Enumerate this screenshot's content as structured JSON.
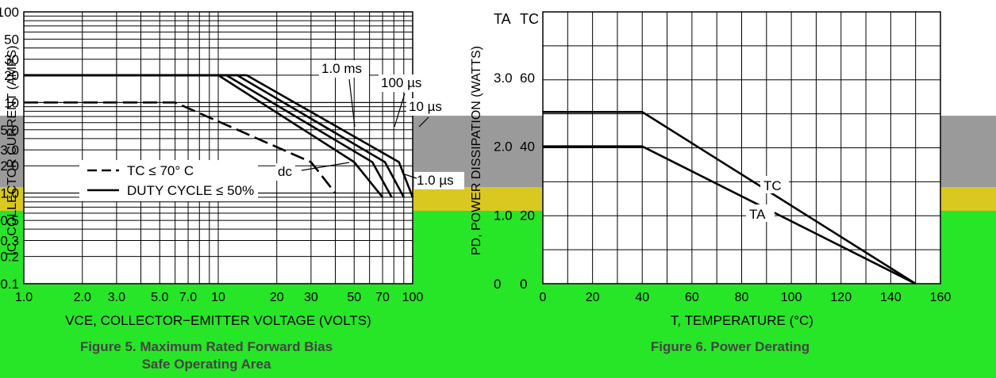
{
  "chart_data": [
    {
      "type": "line",
      "title": "Figure 5. Maximum Rated Forward Bias Safe Operating Area",
      "xlabel": "V_CE, COLLECTOR−EMITTER VOLTAGE (VOLTS)",
      "ylabel": "I_C, COLLECTOR CURRENT (AMPS)",
      "x_scale": "log",
      "y_scale": "log",
      "xlim": [
        1.0,
        100
      ],
      "ylim": [
        0.1,
        100
      ],
      "x_ticks": [
        "1.0",
        "2.0",
        "3.0",
        "5.0",
        "7.0",
        "10",
        "20",
        "30",
        "50",
        "70",
        "100"
      ],
      "y_ticks": [
        "0.1",
        "0.2",
        "0.3",
        "0.5",
        "1.0",
        "2.0",
        "3.0",
        "5.0",
        "10",
        "20",
        "30",
        "50",
        "100"
      ],
      "grid": true,
      "legend_position": "lower-left",
      "legend": [
        "T_C ≤ 70° C",
        "DUTY CYCLE ≤ 50%"
      ],
      "series": [
        {
          "name": "1.0 ms",
          "x": [
            1.0,
            10,
            50,
            70
          ],
          "y": [
            20,
            20,
            2.2,
            0.9
          ]
        },
        {
          "name": "100 µs",
          "x": [
            1.0,
            11,
            62,
            78
          ],
          "y": [
            20,
            20,
            2.2,
            0.9
          ]
        },
        {
          "name": "10 µs",
          "x": [
            1.0,
            12.5,
            72,
            90
          ],
          "y": [
            20,
            20,
            2.2,
            0.9
          ]
        },
        {
          "name": "1.0 µs",
          "x": [
            1.0,
            14,
            85,
            100
          ],
          "y": [
            20,
            20,
            2.2,
            0.9
          ]
        },
        {
          "name": "dc",
          "x": [
            1.0,
            6.0,
            30,
            40
          ],
          "y": [
            10,
            10,
            2.2,
            1.0
          ]
        }
      ],
      "annotations": [
        "1.0 ms",
        "100 µs",
        "10 µs",
        "1.0 µs",
        "dc"
      ]
    },
    {
      "type": "line",
      "title": "Figure 6. Power Derating",
      "xlabel": "T, TEMPERATURE (°C)",
      "ylabel": "P_D, POWER DISSIPATION (WATTS)",
      "xlim": [
        0,
        160
      ],
      "x_ticks": [
        "0",
        "20",
        "40",
        "60",
        "80",
        "100",
        "120",
        "140",
        "160"
      ],
      "y_axis_TA": {
        "name": "T_A",
        "ticks": [
          "0",
          "1.0",
          "2.0",
          "3.0"
        ]
      },
      "y_axis_TC": {
        "name": "T_C",
        "ticks": [
          "0",
          "20",
          "40",
          "60"
        ]
      },
      "grid": true,
      "series": [
        {
          "name": "T_C",
          "x": [
            0,
            40,
            150
          ],
          "y_tc": [
            50,
            50,
            0
          ]
        },
        {
          "name": "T_A",
          "x": [
            0,
            40,
            150
          ],
          "y_ta": [
            2.0,
            2.0,
            0
          ]
        }
      ]
    }
  ],
  "text": {
    "f5_y_ticks": [
      "100",
      "50",
      "30",
      "20",
      "10",
      "5.0",
      "3.0",
      "2.0",
      "1.0",
      "0.5",
      "0.3",
      "0.2",
      "0.1"
    ],
    "f5_x_ticks": [
      "1.0",
      "2.0",
      "3.0",
      "5.0",
      "7.0",
      "10",
      "20",
      "30",
      "50",
      "70",
      "100"
    ],
    "f5_ylabel": "I_C, COLLECTOR CURRENT (AMPS)",
    "f5_xlabel": "V_CE, COLLECTOR−EMITTER VOLTAGE (VOLTS)",
    "f5_ann": [
      "1.0 ms",
      "100 µs",
      "10 µs",
      "1.0 µs",
      "dc"
    ],
    "legend": [
      "T_C ≤ 70° C",
      "DUTY CYCLE ≤ 50%"
    ],
    "f5_caption_1": "Figure 5. Maximum Rated Forward Bias",
    "f5_caption_2": "Safe Operating Area",
    "f6_ta_ticks": [
      "3.0",
      "2.0",
      "1.0",
      "0"
    ],
    "f6_tc_ticks": [
      "60",
      "40",
      "20",
      "0"
    ],
    "f6_x_ticks": [
      "0",
      "20",
      "40",
      "60",
      "80",
      "100",
      "120",
      "140",
      "160"
    ],
    "f6_ylabel": "P_D, POWER DISSIPATION (WATTS)",
    "f6_xlabel": "T, TEMPERATURE (°C)",
    "f6_caption": "Figure 6. Power Derating",
    "axis_TA": "T_A",
    "axis_TC": "T_C"
  }
}
